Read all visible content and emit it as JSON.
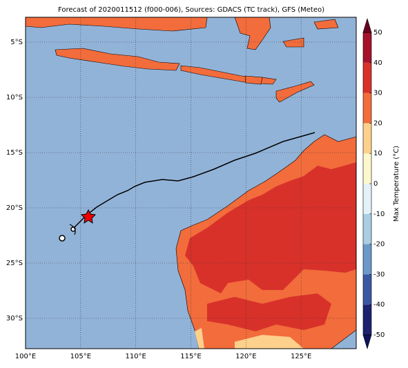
{
  "title": "Forecast of 2020011512 (f000-006), Sources: GDACS (TC track), GFS (Meteo)",
  "map": {
    "xlim": [
      100,
      130
    ],
    "ylim": [
      -32.75,
      -2.75
    ],
    "xticks": [
      {
        "value": 100,
        "label": "100°E"
      },
      {
        "value": 105,
        "label": "105°E"
      },
      {
        "value": 110,
        "label": "110°E"
      },
      {
        "value": 115,
        "label": "115°E"
      },
      {
        "value": 120,
        "label": "120°E"
      },
      {
        "value": 125,
        "label": "125°E"
      }
    ],
    "yticks": [
      {
        "value": -5,
        "label": "5°S"
      },
      {
        "value": -10,
        "label": "10°S"
      },
      {
        "value": -15,
        "label": "15°S"
      },
      {
        "value": -20,
        "label": "20°S"
      },
      {
        "value": -25,
        "label": "25°S"
      },
      {
        "value": -30,
        "label": "30°S"
      }
    ],
    "grid": true
  },
  "colorbar": {
    "label": "Max Temperature (°C)",
    "ticks": [
      -50,
      -40,
      -30,
      -20,
      -10,
      0,
      10,
      20,
      30,
      40,
      50
    ],
    "colors": [
      "#1c2270",
      "#3a57a4",
      "#6a98c8",
      "#a9cde3",
      "#e2f2f8",
      "#fdf8cc",
      "#fdd08c",
      "#f26c3c",
      "#d8312a",
      "#a6122a"
    ],
    "under_color": "#10135a",
    "over_color": "#6b0020"
  }
}
